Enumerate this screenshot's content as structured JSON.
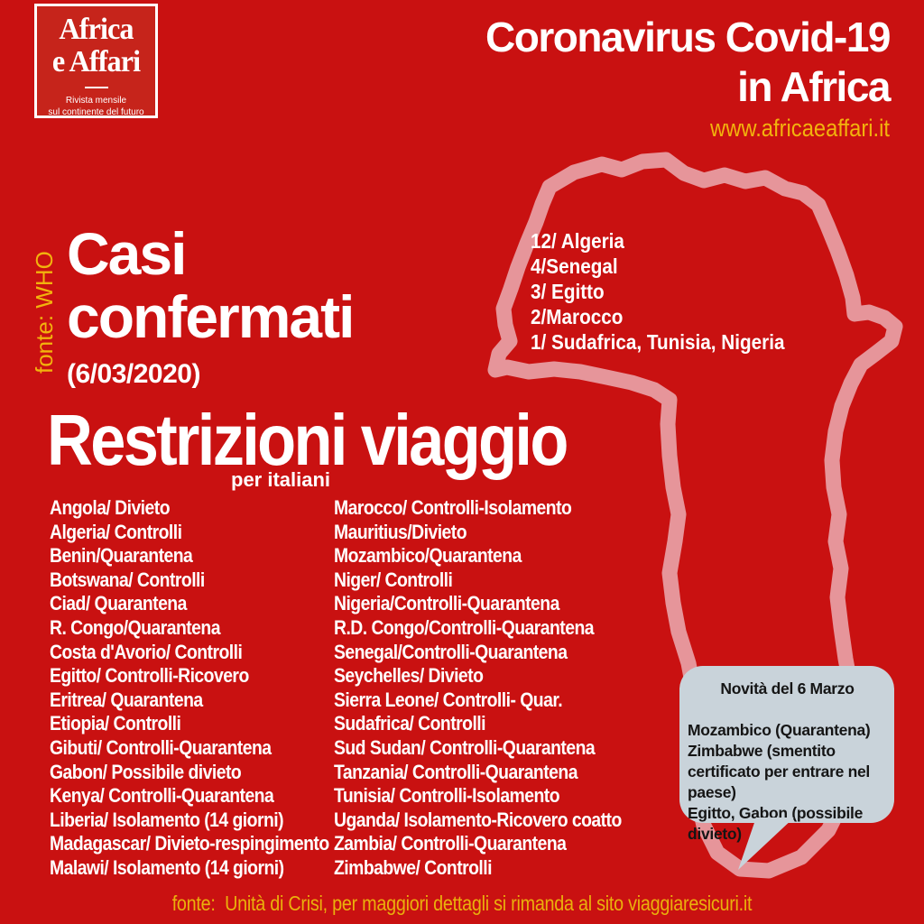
{
  "colors": {
    "background": "#c91111",
    "logo_background": "#c6241b",
    "accent_yellow": "#f2b30d",
    "footer_yellow": "#eab10c",
    "map_outline_pink": "#e6959a",
    "bubble_background": "#c9d3da",
    "bubble_text": "#151515",
    "text_white": "#ffffff"
  },
  "logo": {
    "title_line1": "Africa",
    "title_line2": "e Affari",
    "tagline_line1": "Rivista mensile",
    "tagline_line2": "sul continente del futuro"
  },
  "header": {
    "title_line1": "Coronavirus Covid-19",
    "title_line2": "in Africa",
    "website": "www.africaeaffari.it"
  },
  "confirmed": {
    "source_label": "fonte: WHO",
    "title_line1": "Casi",
    "title_line2": "confermati",
    "date": "(6/03/2020)",
    "cases": [
      "12/ Algeria",
      "4/Senegal",
      "3/ Egitto",
      "2/Marocco",
      "1/ Sudafrica, Tunisia, Nigeria"
    ]
  },
  "restrictions": {
    "title": "Restrizioni viaggio",
    "subtitle": "per italiani",
    "column_left": [
      "Angola/ Divieto",
      "Algeria/ Controlli",
      "Benin/Quarantena",
      "Botswana/ Controlli",
      "Ciad/ Quarantena",
      "R. Congo/Quarantena",
      "Costa d'Avorio/ Controlli",
      "Egitto/ Controlli-Ricovero",
      "Eritrea/ Quarantena",
      "Etiopia/ Controlli",
      "Gibuti/ Controlli-Quarantena",
      "Gabon/ Possibile divieto",
      "Kenya/ Controlli-Quarantena",
      "Liberia/ Isolamento (14 giorni)",
      "Madagascar/ Divieto-respingimento",
      "Malawi/ Isolamento (14 giorni)"
    ],
    "column_right": [
      "Marocco/ Controlli-Isolamento",
      "Mauritius/Divieto",
      "Mozambico/Quarantena",
      "Niger/ Controlli",
      "Nigeria/Controlli-Quarantena",
      "R.D. Congo/Controlli-Quarantena",
      "Senegal/Controlli-Quarantena",
      "Seychelles/ Divieto",
      "Sierra Leone/ Controlli- Quar.",
      "Sudafrica/ Controlli",
      "Sud Sudan/ Controlli-Quarantena",
      "Tanzania/ Controlli-Quarantena",
      "Tunisia/ Controlli-Isolamento",
      "Uganda/ Isolamento-Ricovero coatto",
      "Zambia/ Controlli-Quarantena",
      "Zimbabwe/ Controlli"
    ]
  },
  "news_bubble": {
    "title": "Novità del 6 Marzo",
    "body_lines": [
      "Mozambico (Quarantena)",
      "Zimbabwe (smentito",
      "certificato per entrare nel",
      "paese)",
      "Egitto, Gabon (possibile",
      "divieto)"
    ]
  },
  "footer": {
    "text": "fonte:  Unità di Crisi, per maggiori dettagli si rimanda al sito viaggiaresicuri.it"
  }
}
